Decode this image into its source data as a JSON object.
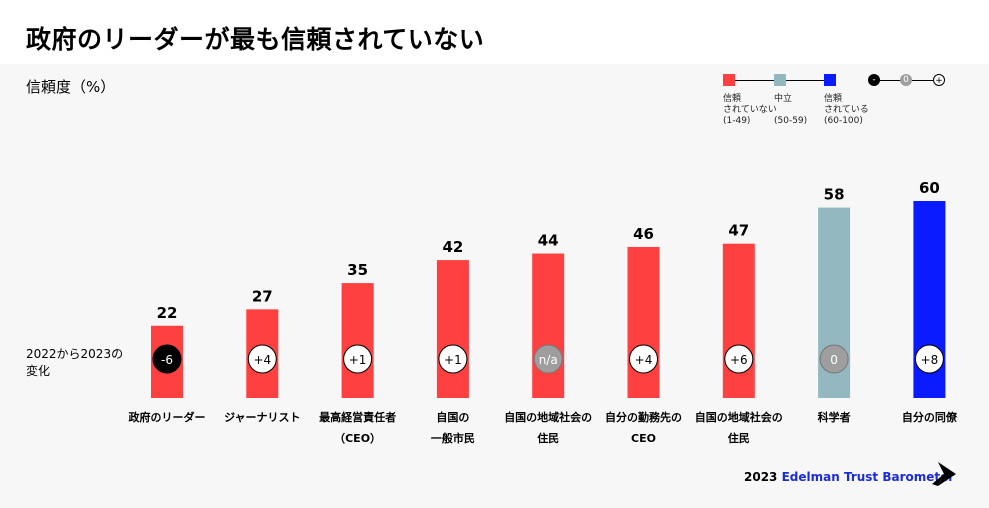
{
  "title": "政府のリーダーが最も信頼されていない",
  "ylabel": "信頼度（%）",
  "change_label": [
    "2022から2023の",
    "変化"
  ],
  "legend": {
    "items": [
      {
        "lines": [
          "信頼",
          "されていない",
          "(1-49)"
        ],
        "color": "#ff4040"
      },
      {
        "lines": [
          "中立",
          "",
          "(50-59)"
        ],
        "color": "#93b8c0"
      },
      {
        "lines": [
          "信頼",
          "されている",
          "(60-100)"
        ],
        "color": "#0a1bff"
      }
    ],
    "change_key": {
      "minus": "-",
      "zero": "0",
      "plus": "+"
    }
  },
  "footer": {
    "year": "2023",
    "brand": "Edelman Trust Barometer"
  },
  "colors": {
    "distrusted": "#ff4040",
    "neutral": "#93b8c0",
    "trusted": "#0a1bff",
    "na": "#9e9e9e",
    "negative": "#000000"
  },
  "chart_data": {
    "type": "bar",
    "categories": [
      [
        "政府のリーダー"
      ],
      [
        "ジャーナリスト"
      ],
      [
        "最高経営責任者",
        "（CEO）"
      ],
      [
        "自国の",
        "一般市民"
      ],
      [
        "自国の地域社会の",
        "住民"
      ],
      [
        "自分の勤務先の",
        "CEO"
      ],
      [
        "自国の地域社会の",
        "住民"
      ],
      [
        "科学者"
      ],
      [
        "自分の同僚"
      ]
    ],
    "values": [
      22,
      27,
      35,
      42,
      44,
      46,
      47,
      58,
      60
    ],
    "change": [
      "-6",
      "+4",
      "+1",
      "+1",
      "n/a",
      "+4",
      "+6",
      "0",
      "+8"
    ],
    "ylim": [
      0,
      60
    ]
  }
}
